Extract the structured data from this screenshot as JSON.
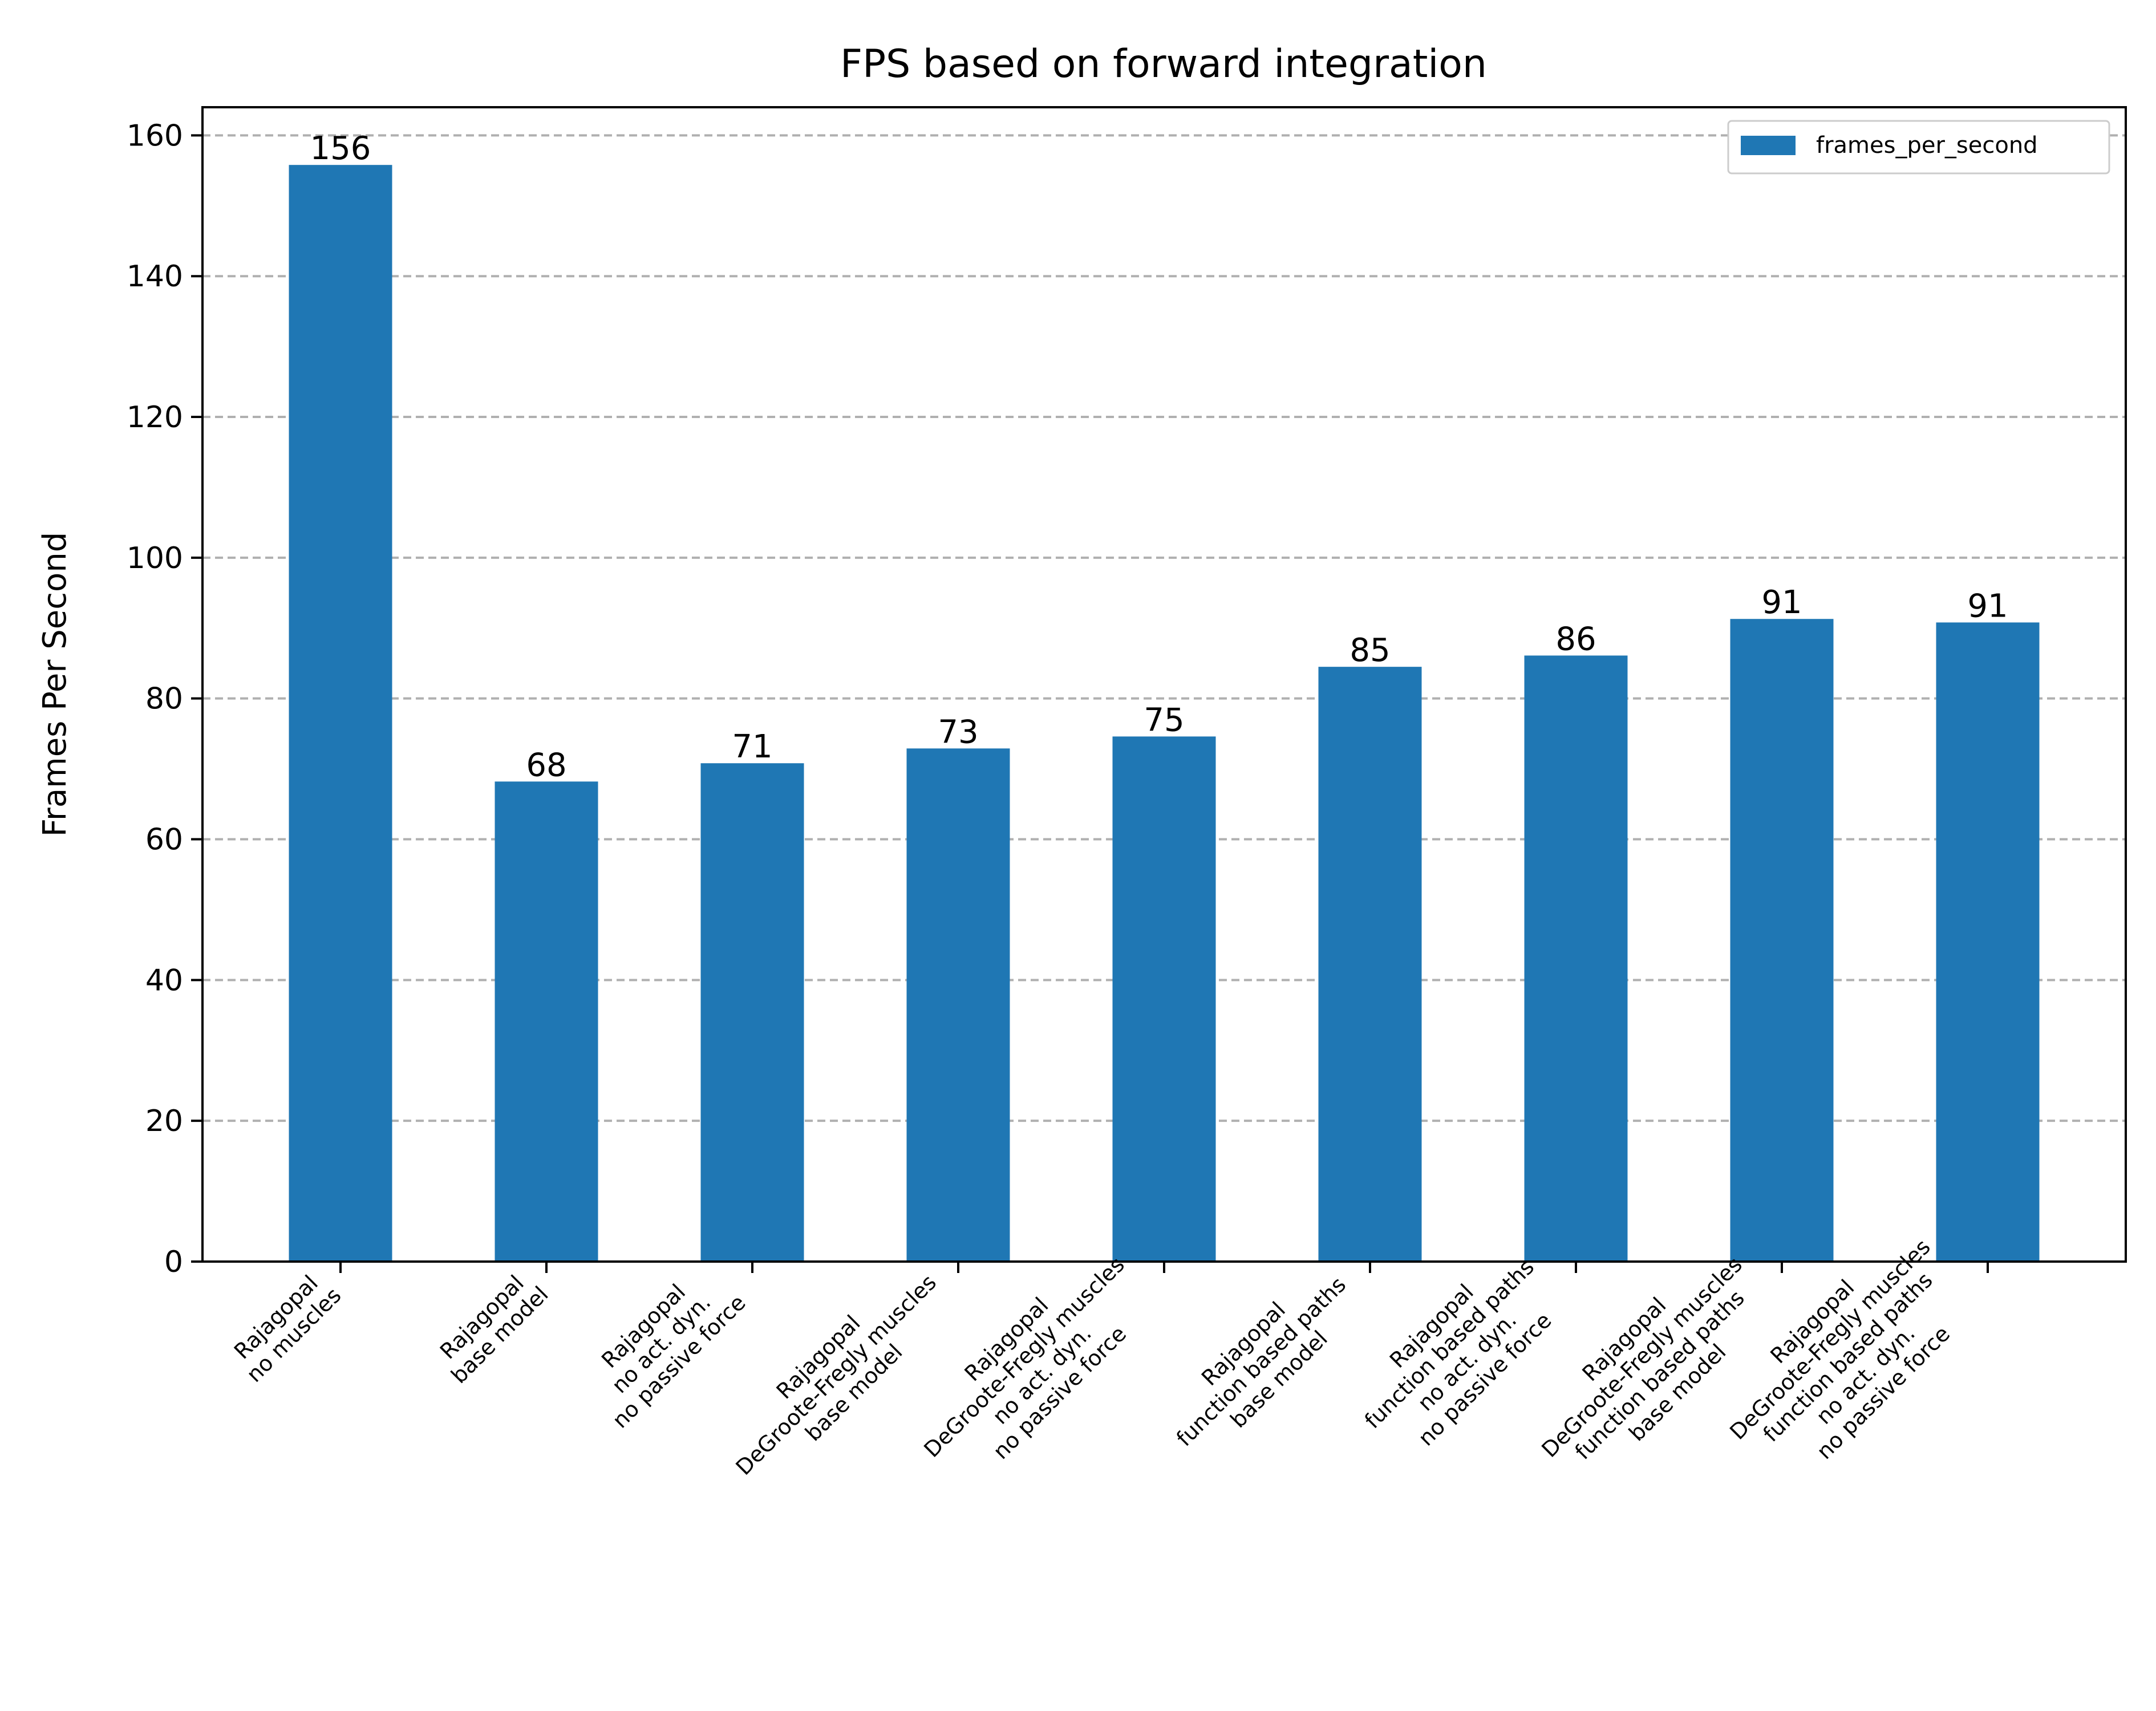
{
  "chart_data": {
    "type": "bar",
    "title": "FPS based on forward integration",
    "xlabel": "",
    "ylabel": "Frames Per Second",
    "ylim": [
      0,
      164
    ],
    "yticks": [
      0,
      20,
      40,
      60,
      80,
      100,
      120,
      140,
      160
    ],
    "grid": "y-dashed",
    "legend_position": "top-right",
    "bar_color": "#1f77b4",
    "categories": [
      [
        "Rajagopal",
        "no muscles"
      ],
      [
        "Rajagopal",
        "base model"
      ],
      [
        "Rajagopal",
        "no act. dyn.",
        "no passive force"
      ],
      [
        "Rajagopal",
        "DeGroote-Fregly muscles",
        "base model"
      ],
      [
        "Rajagopal",
        "DeGroote-Fregly muscles",
        "no act. dyn.",
        "no passive force"
      ],
      [
        "Rajagopal",
        "function based paths",
        "base model"
      ],
      [
        "Rajagopal",
        "function based paths",
        "no act. dyn.",
        "no passive force"
      ],
      [
        "Rajagopal",
        "DeGroote-Fregly muscles",
        "function based paths",
        "base model"
      ],
      [
        "Rajagopal",
        "DeGroote-Fregly muscles",
        "function based paths",
        "no act. dyn.",
        "no passive force"
      ]
    ],
    "series": [
      {
        "name": "frames_per_second",
        "values": [
          155.8,
          68.2,
          70.8,
          72.9,
          74.6,
          84.5,
          86.1,
          91.3,
          90.8
        ],
        "labels": [
          "156",
          "68",
          "71",
          "73",
          "75",
          "85",
          "86",
          "91",
          "91"
        ]
      }
    ]
  }
}
